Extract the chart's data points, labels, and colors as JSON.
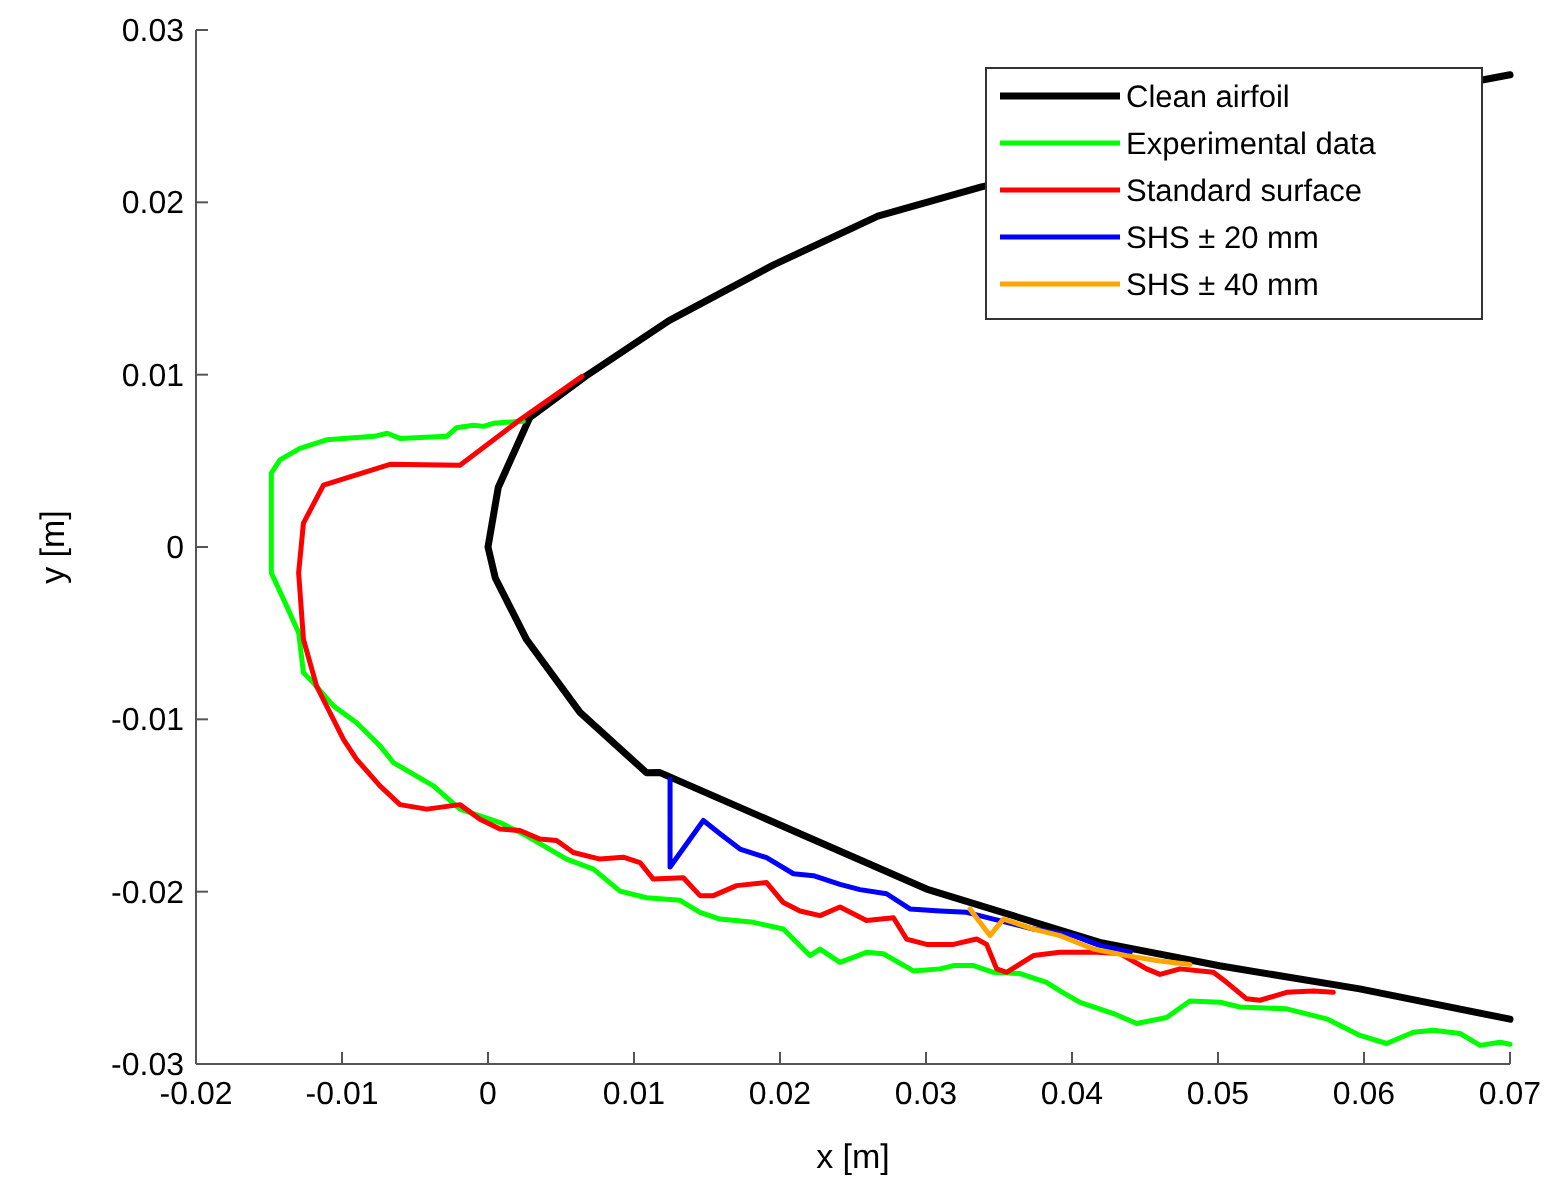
{
  "chart_data": {
    "type": "line",
    "xlabel": "x [m]",
    "ylabel": "y [m]",
    "xlim": [
      -0.02,
      0.07
    ],
    "ylim": [
      -0.03,
      0.03
    ],
    "xticks": [
      -0.02,
      -0.01,
      0,
      0.01,
      0.02,
      0.03,
      0.04,
      0.05,
      0.06,
      0.07
    ],
    "yticks": [
      -0.03,
      -0.02,
      -0.01,
      0,
      0.01,
      0.02,
      0.03
    ],
    "grid": false,
    "legend": "top right",
    "marker": "none",
    "line_style": "solid",
    "series": [
      {
        "name": "Clean airfoil",
        "color": "#000000",
        "x": [
          0.07,
          0.0681,
          0.0338,
          0.0267,
          0.01956,
          0.0124,
          0.00667,
          0.00285,
          0.0007,
          0,
          0.0005,
          0.00264,
          0.0063,
          0.01086,
          0.01178,
          0.03004,
          0.0419,
          0.0501,
          0.0597,
          0.07
        ],
        "values": [
          0.0274,
          0.0271,
          0.0209,
          0.0192,
          0.01637,
          0.01314,
          0.0099,
          0.0075,
          0.00345,
          0,
          -0.0018,
          -0.00537,
          -0.0096,
          -0.0131,
          -0.01309,
          -0.01985,
          -0.02294,
          -0.0243,
          -0.02564,
          -0.0274
        ]
      },
      {
        "name": "Experimental data",
        "color": "#00ff00",
        "x": [
          0.00242,
          0.00036,
          -0.0003,
          -0.001,
          -0.00215,
          -0.00283,
          -0.00603,
          -0.0069,
          -0.0078,
          -0.01105,
          -0.01288,
          -0.01425,
          -0.01484,
          -0.01484,
          -0.01484,
          -0.01379,
          -0.01297,
          -0.01264,
          -0.01196,
          -0.01059,
          -0.009,
          -0.00785,
          -0.0074,
          -0.00648,
          -0.00374,
          -0.00192,
          0.00082,
          0.00264,
          0.00538,
          0.00722,
          0.00904,
          0.01086,
          0.01315,
          0.01452,
          0.01589,
          0.01818,
          0.02023,
          0.02205,
          0.02274,
          0.02411,
          0.02593,
          0.02708,
          0.02914,
          0.03096,
          0.03188,
          0.03325,
          0.03462,
          0.03644,
          0.03826,
          0.03918,
          0.04055,
          0.04284,
          0.04443,
          0.04648,
          0.04808,
          0.05014,
          0.05151,
          0.0547,
          0.05744,
          0.05973,
          0.06155,
          0.06338,
          0.06475,
          0.06658,
          0.06795,
          0.06932,
          0.07
        ],
        "values": [
          0.0073,
          0.00718,
          0.007,
          0.00707,
          0.00692,
          0.00642,
          0.0063,
          0.0066,
          0.00642,
          0.00622,
          0.00572,
          0.00506,
          0.00429,
          0.00043,
          -0.0015,
          -0.00343,
          -0.00498,
          -0.0073,
          -0.00788,
          -0.00922,
          -0.0102,
          -0.01116,
          -0.01154,
          -0.01251,
          -0.01386,
          -0.01521,
          -0.01599,
          -0.01676,
          -0.01811,
          -0.01869,
          -0.01997,
          -0.02035,
          -0.0205,
          -0.0212,
          -0.02159,
          -0.02178,
          -0.02217,
          -0.02371,
          -0.02333,
          -0.0241,
          -0.02352,
          -0.0236,
          -0.0246,
          -0.02448,
          -0.02429,
          -0.02429,
          -0.02468,
          -0.02475,
          -0.02526,
          -0.02576,
          -0.02642,
          -0.02707,
          -0.02765,
          -0.0273,
          -0.02634,
          -0.02642,
          -0.02669,
          -0.0268,
          -0.02738,
          -0.02834,
          -0.02881,
          -0.02816,
          -0.02804,
          -0.02823,
          -0.02892,
          -0.02874,
          -0.02885
        ]
      },
      {
        "name": "Standard surface",
        "color": "#ff0000",
        "x": [
          0.00644,
          0.00219,
          -0.00192,
          -0.00671,
          -0.01127,
          -0.01264,
          -0.01297,
          -0.01264,
          -0.01174,
          -0.0099,
          -0.009,
          -0.0074,
          -0.00603,
          -0.0042,
          -0.00192,
          -0.00055,
          0.00082,
          0.00219,
          0.00356,
          0.0047,
          0.00585,
          0.00767,
          0.00927,
          0.01041,
          0.01132,
          0.01338,
          0.01452,
          0.01544,
          0.01703,
          0.01908,
          0.02023,
          0.02137,
          0.02274,
          0.02411,
          0.02593,
          0.02777,
          0.02867,
          0.03004,
          0.03188,
          0.03347,
          0.03415,
          0.03484,
          0.03552,
          0.03736,
          0.03918,
          0.04168,
          0.04329,
          0.04511,
          0.04603,
          0.0474,
          0.04968,
          0.05059,
          0.05196,
          0.05288,
          0.0547,
          0.05653,
          0.0579
        ],
        "values": [
          0.0099,
          0.00738,
          0.00475,
          0.0048,
          0.00359,
          0.00139,
          -0.0015,
          -0.00537,
          -0.00807,
          -0.01116,
          -0.01232,
          -0.01386,
          -0.01495,
          -0.01521,
          -0.01495,
          -0.0158,
          -0.01637,
          -0.01645,
          -0.01695,
          -0.01703,
          -0.01773,
          -0.01811,
          -0.018,
          -0.01831,
          -0.01927,
          -0.01919,
          -0.02023,
          -0.02023,
          -0.01965,
          -0.01947,
          -0.02063,
          -0.02112,
          -0.02139,
          -0.02089,
          -0.02167,
          -0.02151,
          -0.02275,
          -0.02306,
          -0.02306,
          -0.02275,
          -0.02306,
          -0.02448,
          -0.02468,
          -0.02371,
          -0.02352,
          -0.02352,
          -0.02359,
          -0.02448,
          -0.0248,
          -0.02448,
          -0.02468,
          -0.02526,
          -0.02622,
          -0.0263,
          -0.02584,
          -0.02576,
          -0.02584
        ]
      },
      {
        "name": "SHS ± 20 mm",
        "color": "#0000ff",
        "x": [
          0.01247,
          0.01247,
          0.01475,
          0.01589,
          0.01726,
          0.01908,
          0.02092,
          0.02229,
          0.02411,
          0.02548,
          0.0273,
          0.0289,
          0.03096,
          0.03278,
          0.03462,
          0.03736,
          0.0401,
          0.04192,
          0.044
        ],
        "values": [
          -0.01348,
          -0.01857,
          -0.01587,
          -0.01664,
          -0.01753,
          -0.01803,
          -0.01896,
          -0.01907,
          -0.01958,
          -0.01988,
          -0.02012,
          -0.021,
          -0.02112,
          -0.0212,
          -0.02159,
          -0.02217,
          -0.02255,
          -0.02313,
          -0.0235
        ]
      },
      {
        "name": "SHS ± 40 mm",
        "color": "#ffa500",
        "x": [
          0.03301,
          0.03438,
          0.0353,
          0.03736,
          0.03918,
          0.04147,
          0.04374,
          0.04603,
          0.04808
        ],
        "values": [
          -0.021,
          -0.02255,
          -0.02159,
          -0.02217,
          -0.02255,
          -0.02333,
          -0.02371,
          -0.02402,
          -0.02422
        ]
      }
    ]
  }
}
